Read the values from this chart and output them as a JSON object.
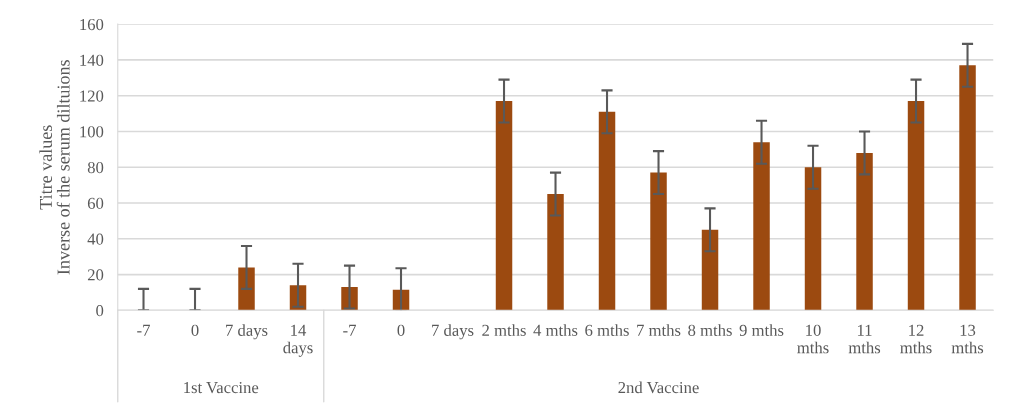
{
  "chart_data": {
    "type": "bar",
    "ylabel": "Titre values\nInverse of the serum diltuions",
    "categories": [
      "-7",
      "0",
      "7 days",
      "14 days",
      "-7",
      "0",
      "7 days",
      "2 mths",
      "4 mths",
      "6 mths",
      "7 mths",
      "8 mths",
      "9 mths",
      "10 mths",
      "11 mths",
      "12 mths",
      "13 mths"
    ],
    "values": [
      0,
      0,
      24,
      14,
      13,
      11.5,
      null,
      117,
      65,
      111,
      77,
      45,
      94,
      80,
      88,
      117,
      137
    ],
    "errors": [
      [
        0,
        12
      ],
      [
        0,
        12
      ],
      12,
      12,
      12,
      12,
      null,
      12,
      12,
      12,
      12,
      12,
      12,
      12,
      12,
      12,
      12
    ],
    "color": "#9c4a10",
    "ylim": [
      0,
      160
    ],
    "yticks": [
      0,
      20,
      40,
      60,
      80,
      100,
      120,
      140,
      160
    ],
    "grid": "y",
    "annotations": [
      "1st Vaccine",
      "2nd Vaccine"
    ]
  }
}
